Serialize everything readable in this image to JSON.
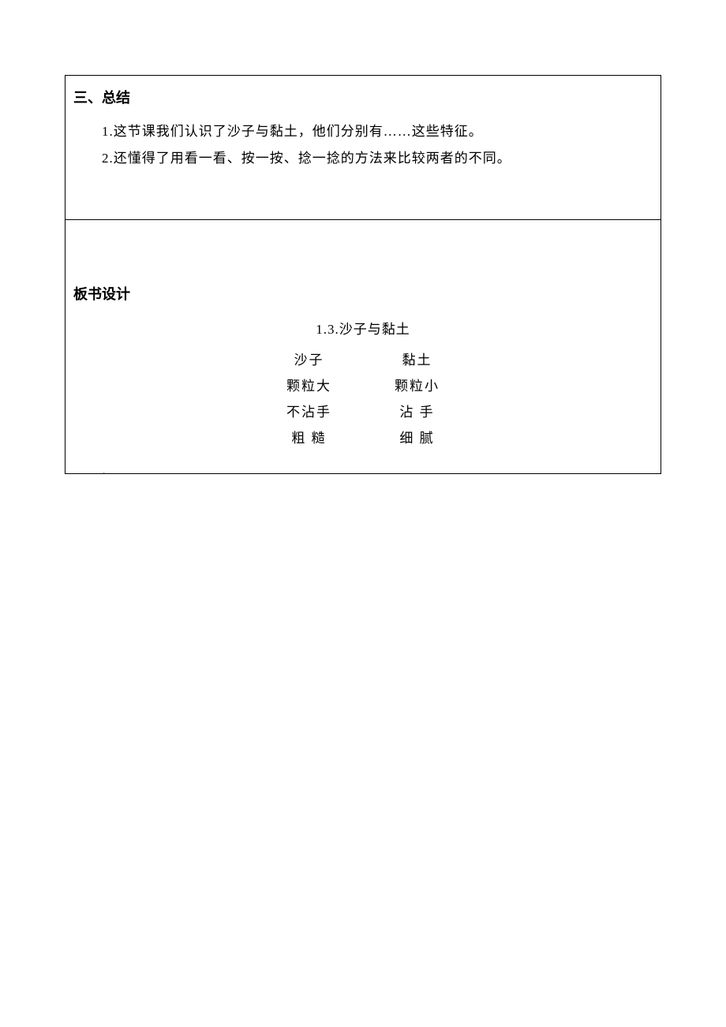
{
  "header_label": "",
  "summary": {
    "title": "三、总结",
    "line1": "1.这节课我们认识了沙子与黏土，他们分别有……这些特征。",
    "line2": "2.还懂得了用看一看、按一按、捻一捻的方法来比较两者的不同。"
  },
  "board": {
    "title": "板书设计",
    "heading": "1.3.沙子与黏土",
    "rows": [
      {
        "left": "沙子",
        "right": "黏土"
      },
      {
        "left": "颗粒大",
        "right": "颗粒小"
      },
      {
        "left": "不沾手",
        "right": "沾 手"
      },
      {
        "left": "粗 糙",
        "right": "细 腻"
      }
    ]
  },
  "dot": ".",
  "footer_label": ""
}
